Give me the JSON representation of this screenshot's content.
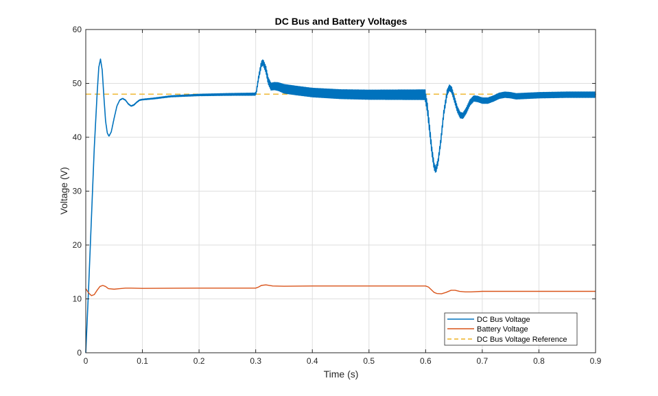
{
  "chart_data": {
    "type": "line",
    "title": "DC Bus and Battery Voltages",
    "xlabel": "Time (s)",
    "ylabel": "Voltage (V)",
    "xlim": [
      0,
      0.9
    ],
    "ylim": [
      0,
      60
    ],
    "xticks": [
      0,
      0.1,
      0.2,
      0.3,
      0.4,
      0.5,
      0.6,
      0.7,
      0.8,
      0.9
    ],
    "xtick_labels": [
      "0",
      "0.1",
      "0.2",
      "0.3",
      "0.4",
      "0.5",
      "0.6",
      "0.7",
      "0.8",
      "0.9"
    ],
    "yticks": [
      0,
      10,
      20,
      30,
      40,
      50,
      60
    ],
    "ytick_labels": [
      "0",
      "10",
      "20",
      "30",
      "40",
      "50",
      "60"
    ],
    "grid": true,
    "legend_position": "bottom-right",
    "series": [
      {
        "name": "DC Bus Voltage",
        "color": "#0072BD",
        "style": "solid",
        "ripple_band": [
          [
            0,
            0
          ],
          [
            0.3,
            0.2
          ],
          [
            0.31,
            0.5
          ],
          [
            0.35,
            0.8
          ],
          [
            0.4,
            0.8
          ],
          [
            0.6,
            0.9
          ],
          [
            0.62,
            0.5
          ],
          [
            0.7,
            0.5
          ],
          [
            0.9,
            0.5
          ]
        ],
        "points": [
          [
            0,
            0
          ],
          [
            0.005,
            12
          ],
          [
            0.01,
            25
          ],
          [
            0.015,
            38
          ],
          [
            0.02,
            48
          ],
          [
            0.023,
            53
          ],
          [
            0.026,
            54.5
          ],
          [
            0.029,
            52.5
          ],
          [
            0.032,
            47.5
          ],
          [
            0.035,
            43
          ],
          [
            0.038,
            40.8
          ],
          [
            0.041,
            40.2
          ],
          [
            0.045,
            41
          ],
          [
            0.05,
            43.5
          ],
          [
            0.055,
            45.8
          ],
          [
            0.06,
            46.9
          ],
          [
            0.065,
            47.2
          ],
          [
            0.07,
            46.9
          ],
          [
            0.075,
            46.2
          ],
          [
            0.08,
            45.8
          ],
          [
            0.085,
            46.0
          ],
          [
            0.09,
            46.5
          ],
          [
            0.095,
            46.9
          ],
          [
            0.1,
            47.0
          ],
          [
            0.12,
            47.2
          ],
          [
            0.15,
            47.6
          ],
          [
            0.2,
            47.85
          ],
          [
            0.25,
            47.95
          ],
          [
            0.299,
            48.0
          ],
          [
            0.301,
            48.3
          ],
          [
            0.305,
            51.0
          ],
          [
            0.31,
            53.6
          ],
          [
            0.313,
            53.9
          ],
          [
            0.318,
            52.6
          ],
          [
            0.322,
            50.5
          ],
          [
            0.327,
            49.4
          ],
          [
            0.333,
            49.5
          ],
          [
            0.34,
            49.4
          ],
          [
            0.35,
            49.0
          ],
          [
            0.37,
            48.7
          ],
          [
            0.4,
            48.3
          ],
          [
            0.45,
            48.0
          ],
          [
            0.5,
            47.9
          ],
          [
            0.55,
            47.9
          ],
          [
            0.599,
            47.9
          ],
          [
            0.603,
            45.5
          ],
          [
            0.607,
            41.5
          ],
          [
            0.611,
            37.5
          ],
          [
            0.615,
            34.6
          ],
          [
            0.618,
            33.9
          ],
          [
            0.622,
            35.5
          ],
          [
            0.627,
            39.5
          ],
          [
            0.632,
            44.5
          ],
          [
            0.638,
            48.3
          ],
          [
            0.642,
            49.2
          ],
          [
            0.646,
            48.8
          ],
          [
            0.651,
            47.0
          ],
          [
            0.656,
            45.2
          ],
          [
            0.661,
            44.1
          ],
          [
            0.666,
            44.0
          ],
          [
            0.672,
            45.0
          ],
          [
            0.678,
            46.4
          ],
          [
            0.685,
            47.2
          ],
          [
            0.692,
            47.1
          ],
          [
            0.7,
            46.8
          ],
          [
            0.71,
            46.8
          ],
          [
            0.72,
            47.2
          ],
          [
            0.73,
            47.7
          ],
          [
            0.74,
            47.9
          ],
          [
            0.75,
            47.8
          ],
          [
            0.76,
            47.6
          ],
          [
            0.78,
            47.7
          ],
          [
            0.8,
            47.8
          ],
          [
            0.85,
            47.9
          ],
          [
            0.9,
            47.9
          ]
        ]
      },
      {
        "name": "Battery Voltage",
        "color": "#D95319",
        "style": "solid",
        "points": [
          [
            0,
            11.9
          ],
          [
            0.005,
            11.1
          ],
          [
            0.01,
            10.6
          ],
          [
            0.015,
            10.8
          ],
          [
            0.02,
            11.6
          ],
          [
            0.025,
            12.3
          ],
          [
            0.03,
            12.5
          ],
          [
            0.035,
            12.3
          ],
          [
            0.04,
            11.9
          ],
          [
            0.05,
            11.8
          ],
          [
            0.06,
            11.9
          ],
          [
            0.07,
            12.0
          ],
          [
            0.08,
            12.0
          ],
          [
            0.1,
            11.95
          ],
          [
            0.2,
            12.0
          ],
          [
            0.3,
            12.0
          ],
          [
            0.305,
            12.2
          ],
          [
            0.31,
            12.5
          ],
          [
            0.318,
            12.6
          ],
          [
            0.33,
            12.4
          ],
          [
            0.35,
            12.35
          ],
          [
            0.4,
            12.4
          ],
          [
            0.5,
            12.4
          ],
          [
            0.6,
            12.4
          ],
          [
            0.605,
            12.2
          ],
          [
            0.61,
            11.7
          ],
          [
            0.615,
            11.2
          ],
          [
            0.62,
            11.0
          ],
          [
            0.628,
            10.95
          ],
          [
            0.636,
            11.2
          ],
          [
            0.645,
            11.6
          ],
          [
            0.652,
            11.6
          ],
          [
            0.66,
            11.4
          ],
          [
            0.67,
            11.3
          ],
          [
            0.68,
            11.3
          ],
          [
            0.7,
            11.4
          ],
          [
            0.75,
            11.4
          ],
          [
            0.8,
            11.4
          ],
          [
            0.9,
            11.4
          ]
        ]
      },
      {
        "name": "DC Bus Voltage Reference",
        "color": "#EDB120",
        "style": "dashed",
        "points": [
          [
            0,
            48
          ],
          [
            0.9,
            48
          ]
        ]
      }
    ]
  }
}
